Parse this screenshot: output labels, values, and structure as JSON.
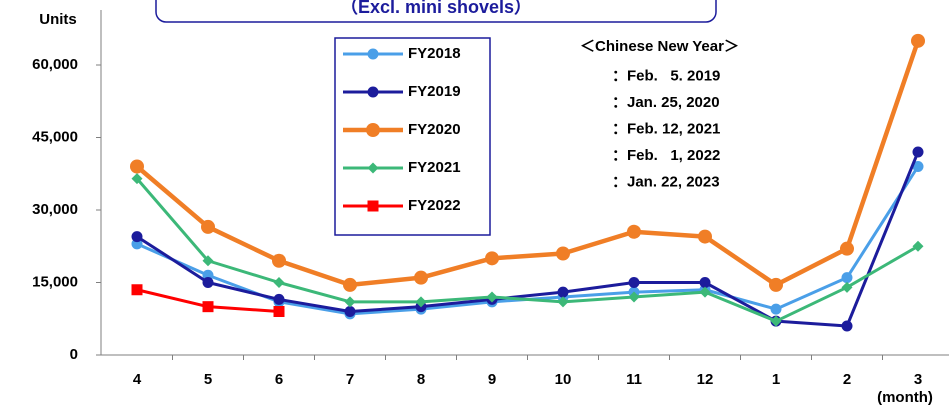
{
  "chart_data": {
    "type": "line",
    "title": "（Excl. mini shovels）",
    "y_label": "Units",
    "x_label": "(month)",
    "categories": [
      "4",
      "5",
      "6",
      "7",
      "8",
      "9",
      "10",
      "11",
      "12",
      "1",
      "2",
      "3"
    ],
    "series": [
      {
        "name": "FY2018",
        "color": "#4a9fe8",
        "marker": "circle",
        "values": [
          23000,
          16500,
          11000,
          8500,
          9500,
          11000,
          12000,
          13000,
          13500,
          9500,
          16000,
          39000
        ]
      },
      {
        "name": "FY2019",
        "color": "#1c1c9c",
        "marker": "circle",
        "values": [
          24500,
          15000,
          11500,
          9000,
          10000,
          11500,
          13000,
          15000,
          15000,
          7000,
          6000,
          42000
        ]
      },
      {
        "name": "FY2020",
        "color": "#f07e26",
        "marker": "circle",
        "values": [
          39000,
          26500,
          19500,
          14500,
          16000,
          20000,
          21000,
          25500,
          24500,
          14500,
          22000,
          65000
        ]
      },
      {
        "name": "FY2021",
        "color": "#3cb878",
        "marker": "diamond",
        "values": [
          36500,
          19500,
          15000,
          11000,
          11000,
          12000,
          11000,
          12000,
          13000,
          7000,
          14000,
          22500
        ]
      },
      {
        "name": "FY2022",
        "color": "#ff0000",
        "marker": "square",
        "values": [
          13500,
          10000,
          9000,
          null,
          null,
          null,
          null,
          null,
          null,
          null,
          null,
          null
        ]
      }
    ],
    "ylim": [
      0,
      66000
    ],
    "yticks": [
      0,
      {
        "value": 15000,
        "label": "15,000"
      },
      {
        "value": 30000,
        "label": "30,000"
      },
      {
        "value": 45000,
        "label": "45,000"
      },
      {
        "value": 60000,
        "label": "60,000"
      }
    ],
    "annotations": [
      "＜Chinese New Year＞",
      "：Feb.   5. 2019",
      "：Jan. 25, 2020",
      "：Feb. 12, 2021",
      "：Feb.   1, 2022",
      "：Jan. 22, 2023"
    ]
  }
}
